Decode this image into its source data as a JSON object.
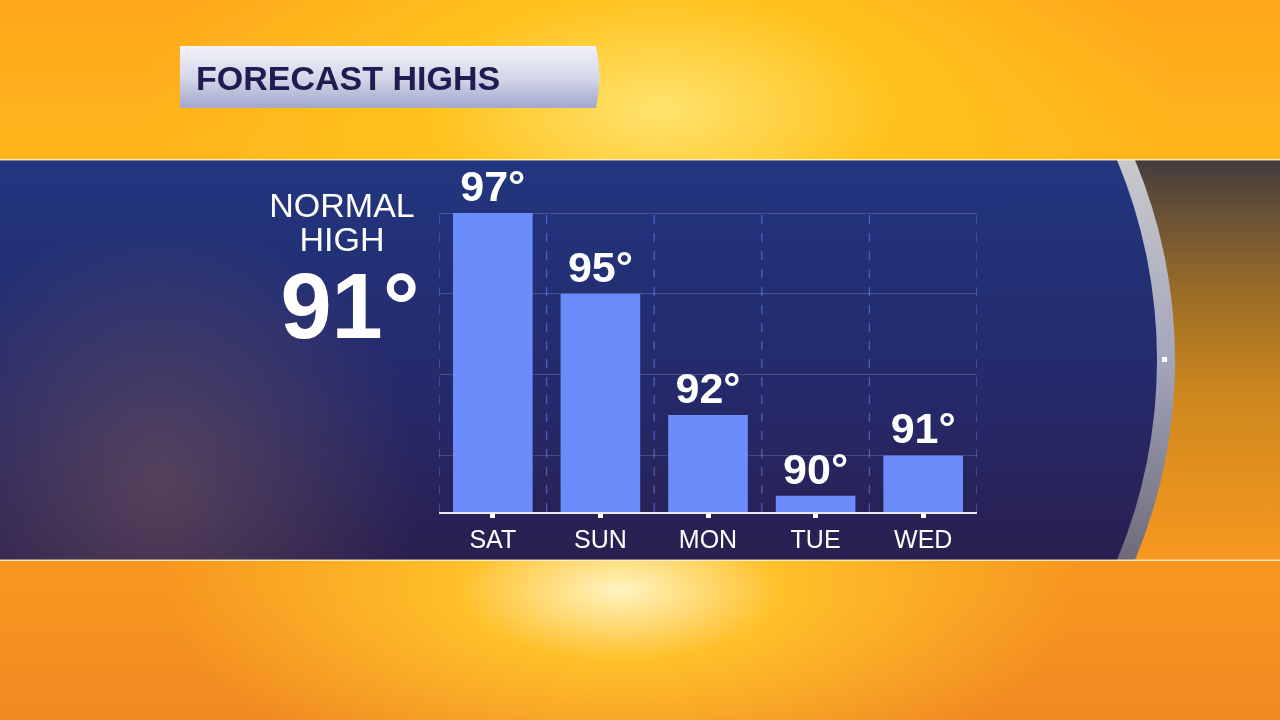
{
  "chart_data": {
    "type": "bar",
    "title": "FORECAST HIGHS",
    "annotations": [
      "NORMAL HIGH",
      "91°"
    ],
    "categories": [
      "SAT",
      "SUN",
      "MON",
      "TUE",
      "WED"
    ],
    "values": [
      97,
      95,
      92,
      90,
      91
    ],
    "value_labels": [
      "97°",
      "95°",
      "92°",
      "90°",
      "91°"
    ],
    "color": "#6c8cfb",
    "ylim": [
      89.6,
      97.1
    ],
    "yticks": [
      {
        "value": 91,
        "label": null
      },
      {
        "value": 93,
        "label": null
      },
      {
        "value": 95,
        "label": null
      },
      {
        "value": 97,
        "label": null
      }
    ],
    "tick_labels": "x",
    "grid": true
  }
}
